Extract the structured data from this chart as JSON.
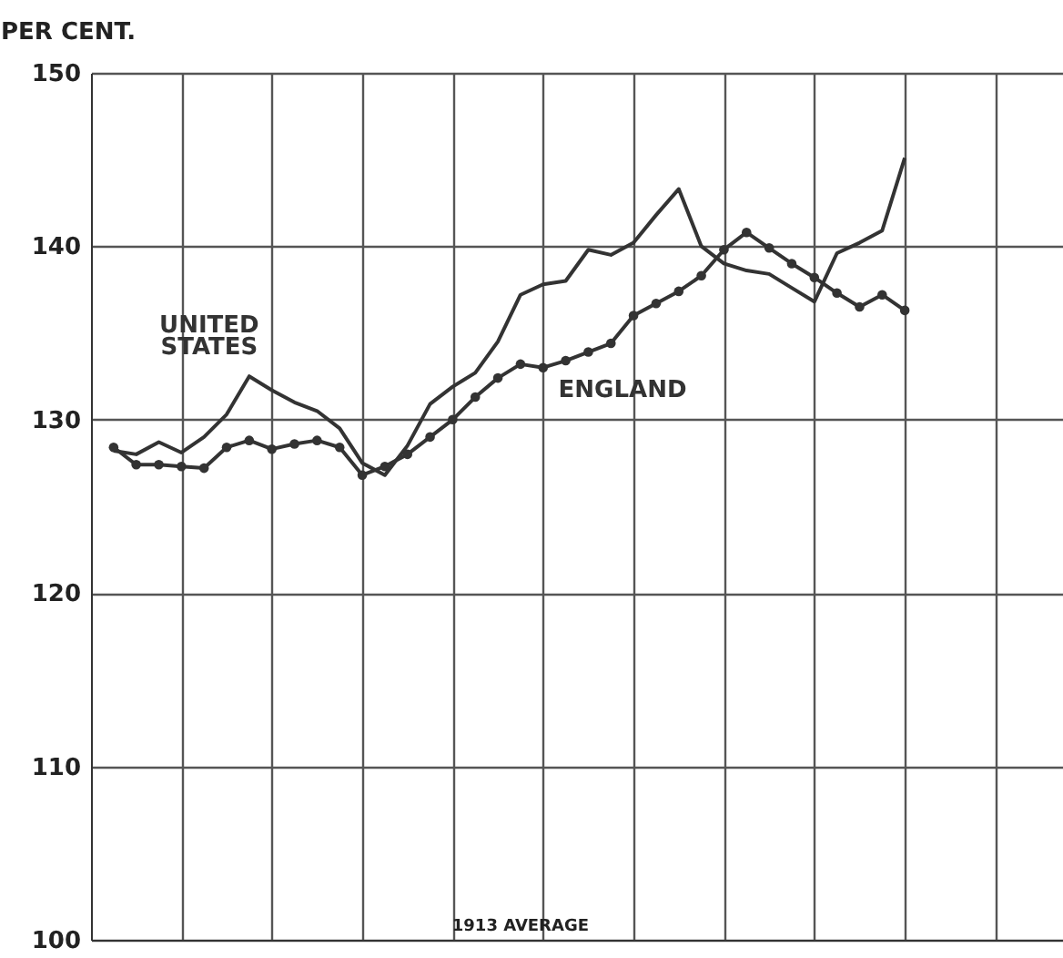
{
  "chart_data": {
    "type": "line",
    "ylabel": "PER CENT.",
    "annotations": [
      "1913 AVERAGE"
    ],
    "categories": [
      null,
      null,
      null,
      null,
      null,
      null,
      null,
      null,
      null,
      null,
      null,
      null,
      null,
      null,
      null,
      null,
      null,
      null,
      null,
      null,
      null,
      null,
      null,
      null,
      null,
      null,
      null,
      null,
      null,
      null,
      null,
      null,
      null,
      null,
      null,
      null,
      null,
      null,
      null,
      null,
      null,
      null
    ],
    "ylim": [
      100,
      150
    ],
    "yticks": [
      100,
      110,
      120,
      130,
      140,
      150
    ],
    "grid": true,
    "line_style": "solid",
    "series": [
      {
        "name": "UNITED STATES",
        "color": "#333333",
        "marker": "none",
        "values": [
          128.2,
          128.0,
          128.7,
          128.1,
          129.0,
          130.3,
          132.5,
          131.7,
          131.0,
          130.5,
          129.5,
          127.5,
          126.8,
          128.5,
          130.9,
          131.9,
          132.7,
          134.5,
          137.2,
          137.8,
          138.0,
          139.8,
          139.5,
          140.2,
          141.8,
          143.3,
          140.0,
          139.0,
          138.6,
          138.4,
          137.6,
          136.8,
          139.6,
          140.2,
          140.9,
          145.1,
          null,
          null,
          null,
          null,
          null,
          null
        ]
      },
      {
        "name": "ENGLAND",
        "color": "#333333",
        "marker": "circle",
        "values": [
          128.4,
          127.4,
          127.4,
          127.3,
          127.2,
          128.4,
          128.8,
          128.3,
          128.6,
          128.8,
          128.4,
          126.8,
          127.3,
          128.0,
          129.0,
          130.0,
          131.3,
          132.4,
          133.2,
          133.0,
          133.4,
          133.9,
          134.4,
          136.0,
          136.7,
          137.4,
          138.3,
          139.8,
          140.8,
          139.9,
          139.0,
          138.2,
          137.3,
          136.5,
          137.2,
          136.3,
          null,
          null,
          null,
          null,
          null,
          null
        ]
      }
    ]
  }
}
